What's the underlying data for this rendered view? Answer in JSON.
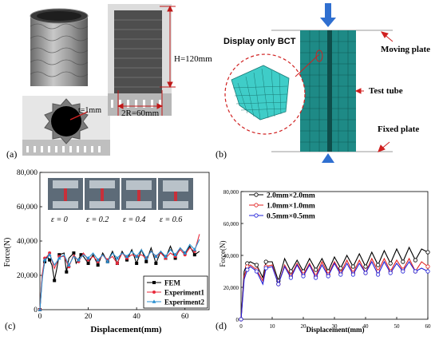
{
  "figure_labels": [
    "(a)",
    "(b)",
    "(c)",
    "(d)"
  ],
  "panel_a": {
    "dim_height": "H=120mm",
    "dim_diameter": "2R=60mm",
    "dim_thickness": "t=1mm"
  },
  "panel_b": {
    "display_label": "Display only BCT",
    "moving_plate": "Moving plate",
    "test_tube": "Test tube",
    "fixed_plate": "Fixed plate",
    "colors": {
      "mesh": "#1e8a86",
      "arrow_blue": "#2f6fd0",
      "annot_red": "#d02020"
    }
  },
  "panel_c": {
    "strain_labels": [
      "ε = 0",
      "ε = 0.2",
      "ε = 0.4",
      "ε = 0.6"
    ],
    "chart_data": {
      "type": "line",
      "xlabel": "Displacement(mm)",
      "ylabel": "Force(N)",
      "xlim": [
        0,
        70
      ],
      "ylim": [
        0,
        80000
      ],
      "xticks": [
        0,
        20,
        40,
        60
      ],
      "yticks": [
        0,
        20000,
        40000,
        60000,
        80000
      ],
      "ytick_labels": [
        "0",
        "20,000",
        "40,000",
        "60,000",
        "80,000"
      ],
      "legend_position": "bottom-right",
      "series": [
        {
          "name": "FEM",
          "color": "#000000",
          "marker": "square",
          "x": [
            0,
            1,
            2,
            3,
            4,
            5,
            6,
            7,
            8,
            10,
            11,
            12,
            14,
            15,
            17,
            18,
            20,
            22,
            24,
            26,
            28,
            30,
            32,
            34,
            36,
            38,
            40,
            42,
            44,
            46,
            48,
            50,
            52,
            54,
            56,
            58,
            60,
            62,
            64,
            66
          ],
          "y": [
            0,
            20000,
            28000,
            31000,
            29000,
            26000,
            17000,
            24000,
            32000,
            33000,
            22000,
            30000,
            33000,
            27000,
            32000,
            31000,
            27000,
            32000,
            26000,
            33000,
            28000,
            34000,
            27000,
            34000,
            29000,
            35000,
            27000,
            35000,
            28000,
            36000,
            27000,
            34000,
            30000,
            37000,
            30000,
            36000,
            33000,
            37000,
            32000,
            34000
          ]
        },
        {
          "name": "Experiment1",
          "color": "#e8283a",
          "marker": "circle",
          "x": [
            0,
            1,
            2,
            3,
            4,
            6,
            8,
            10,
            12,
            14,
            16,
            18,
            20,
            22,
            24,
            26,
            28,
            30,
            32,
            34,
            36,
            38,
            40,
            42,
            44,
            46,
            48,
            50,
            52,
            54,
            56,
            58,
            60,
            62,
            64,
            66
          ],
          "y": [
            0,
            21000,
            30000,
            31000,
            33000,
            24000,
            31000,
            31000,
            25000,
            32000,
            28000,
            33000,
            29000,
            31000,
            28000,
            32000,
            29000,
            31000,
            27000,
            33000,
            30000,
            32000,
            31000,
            32000,
            30000,
            34000,
            31000,
            33000,
            30000,
            33000,
            31000,
            35000,
            32000,
            36000,
            34000,
            44000
          ]
        },
        {
          "name": "Experiment2",
          "color": "#2a8fd0",
          "marker": "triangle",
          "x": [
            0,
            1,
            2,
            3,
            4,
            6,
            8,
            10,
            12,
            14,
            16,
            18,
            20,
            22,
            24,
            26,
            28,
            30,
            32,
            34,
            36,
            38,
            40,
            42,
            44,
            46,
            48,
            50,
            52,
            54,
            56,
            58,
            60,
            62,
            64,
            66
          ],
          "y": [
            0,
            18000,
            29000,
            30000,
            32000,
            26000,
            30000,
            32000,
            26000,
            31000,
            29000,
            32000,
            30000,
            33000,
            29000,
            32000,
            28000,
            33000,
            30000,
            33000,
            31000,
            34000,
            31000,
            35000,
            30000,
            34000,
            31000,
            34000,
            31000,
            35000,
            32000,
            36000,
            33000,
            38000,
            35000,
            41000
          ]
        }
      ]
    }
  },
  "panel_d": {
    "chart_data": {
      "type": "line",
      "xlabel": "Displacement(mm)",
      "ylabel": "Force(N)",
      "xlim": [
        0,
        60
      ],
      "ylim": [
        0,
        80000
      ],
      "xticks": [
        0,
        10,
        20,
        30,
        40,
        50,
        60
      ],
      "yticks": [
        0,
        20000,
        40000,
        60000,
        80000
      ],
      "ytick_labels": [
        "0",
        "20,000",
        "40,000",
        "60,000",
        "80,000"
      ],
      "legend_position": "top-left",
      "series": [
        {
          "name": "2.0mm×2.0mm",
          "color": "#000000",
          "marker": "circle-open",
          "x": [
            0,
            1,
            2,
            3,
            5,
            7,
            8,
            10,
            12,
            14,
            16,
            18,
            20,
            22,
            24,
            26,
            28,
            30,
            32,
            34,
            36,
            38,
            40,
            42,
            44,
            46,
            48,
            50,
            52,
            54,
            56,
            58,
            60
          ],
          "y": [
            0,
            30000,
            35000,
            36000,
            34000,
            26000,
            36000,
            36000,
            24000,
            38000,
            30000,
            37000,
            30000,
            38000,
            31000,
            38000,
            30000,
            39000,
            32000,
            40000,
            33000,
            41000,
            33000,
            42000,
            34000,
            43000,
            35000,
            44000,
            36000,
            45000,
            37000,
            44000,
            42000
          ]
        },
        {
          "name": "1.0mm×1.0mm",
          "color": "#e02020",
          "marker": "circle-open",
          "x": [
            0,
            1,
            2,
            3,
            5,
            7,
            8,
            10,
            12,
            14,
            16,
            18,
            20,
            22,
            24,
            26,
            28,
            30,
            32,
            34,
            36,
            38,
            40,
            42,
            44,
            46,
            48,
            50,
            52,
            54,
            56,
            58,
            60
          ],
          "y": [
            0,
            27000,
            33000,
            34000,
            31000,
            24000,
            33000,
            34000,
            22000,
            34000,
            27000,
            35000,
            28000,
            35000,
            27000,
            36000,
            28000,
            36000,
            29000,
            37000,
            29000,
            37000,
            29000,
            38000,
            30000,
            38000,
            30000,
            37000,
            31000,
            38000,
            30000,
            36000,
            33000
          ]
        },
        {
          "name": "0.5mm×0.5mm",
          "color": "#2020d8",
          "marker": "circle-open",
          "x": [
            0,
            1,
            2,
            3,
            5,
            7,
            8,
            10,
            12,
            14,
            16,
            18,
            20,
            22,
            24,
            26,
            28,
            30,
            32,
            34,
            36,
            38,
            40,
            42,
            44,
            46,
            48,
            50,
            52,
            54,
            56,
            58,
            60
          ],
          "y": [
            0,
            25000,
            31000,
            33000,
            30000,
            22000,
            32000,
            33000,
            22000,
            33000,
            26000,
            34000,
            27000,
            34000,
            26000,
            34000,
            27000,
            35000,
            28000,
            35000,
            28000,
            35000,
            29000,
            36000,
            28000,
            36000,
            29000,
            35000,
            30000,
            36000,
            30000,
            32000,
            30000
          ]
        }
      ]
    }
  }
}
